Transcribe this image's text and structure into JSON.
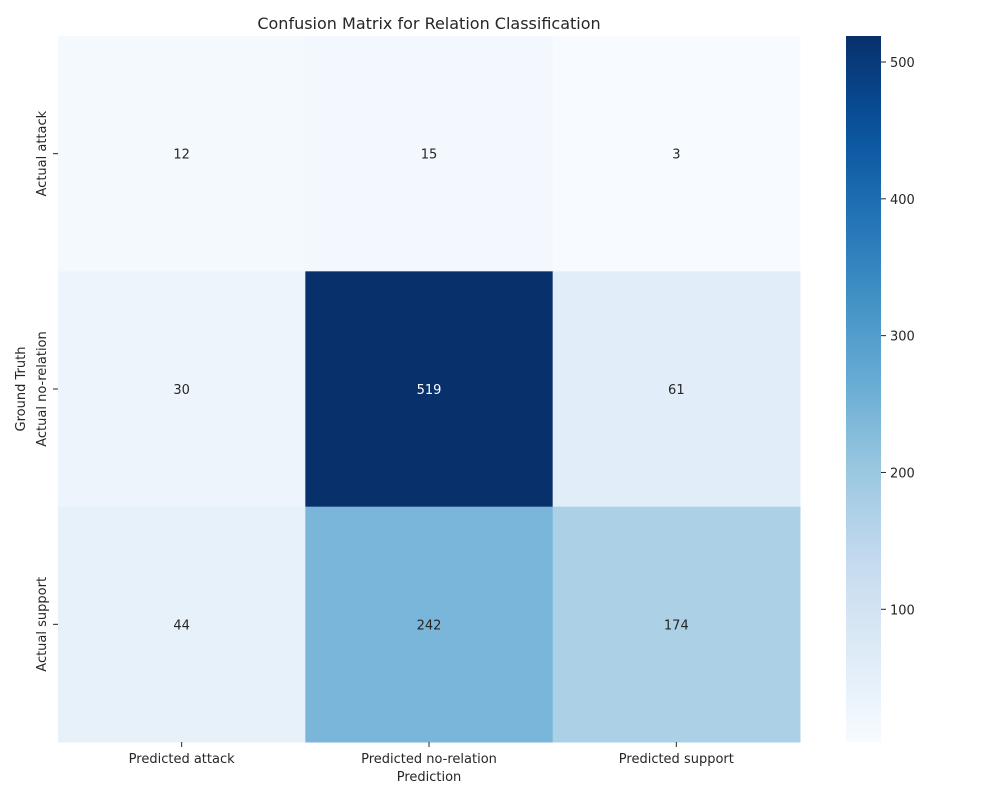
{
  "chart_data": {
    "type": "heatmap",
    "title": "Confusion Matrix for Relation Classification",
    "xlabel": "Prediction",
    "ylabel": "Ground Truth",
    "x_categories": [
      "Predicted attack",
      "Predicted no-relation",
      "Predicted support"
    ],
    "y_categories": [
      "Actual attack",
      "Actual no-relation",
      "Actual support"
    ],
    "values": [
      [
        12,
        15,
        3
      ],
      [
        30,
        519,
        61
      ],
      [
        44,
        242,
        174
      ]
    ],
    "colormap": "Blues",
    "colorbar": {
      "range": [
        3,
        519
      ],
      "ticks": [
        100,
        200,
        300,
        400,
        500
      ]
    },
    "annotation_colors": {
      "light_cell": "#262626",
      "dark_cell": "#ffffff"
    }
  }
}
